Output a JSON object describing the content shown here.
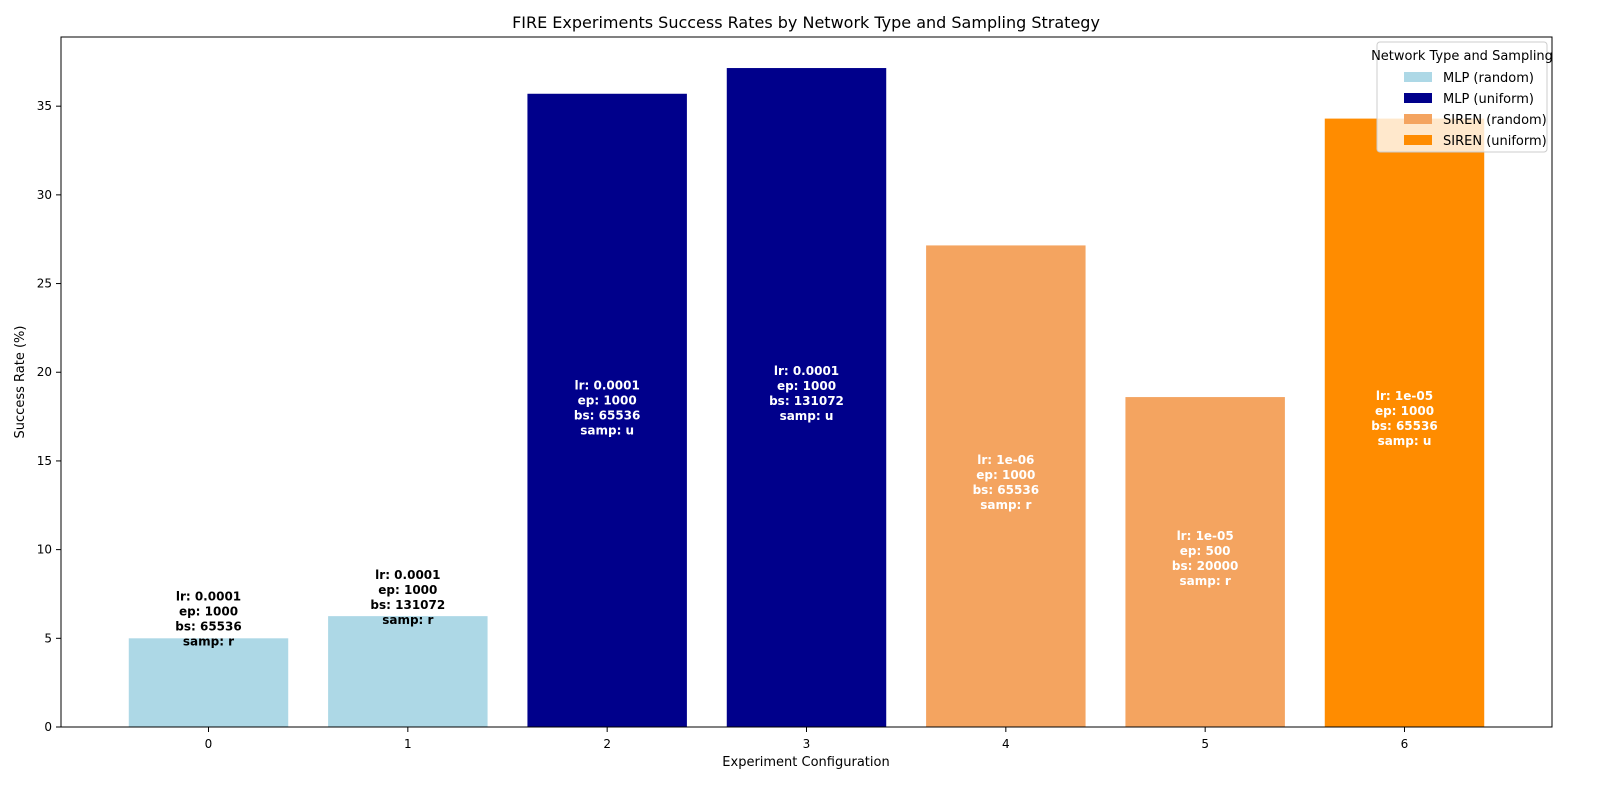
{
  "chart_data": {
    "type": "bar",
    "title": "FIRE Experiments Success Rates by Network Type and Sampling Strategy",
    "xlabel": "Experiment Configuration",
    "ylabel": "Success Rate (%)",
    "ylim": [
      0,
      38.9
    ],
    "xlim": [
      -0.74,
      6.74
    ],
    "yticks": [
      0,
      5,
      10,
      15,
      20,
      25,
      30,
      35
    ],
    "grid": false,
    "legend": {
      "title": "Network Type and Sampling",
      "placement": "top-right",
      "entries": [
        {
          "label": "MLP (random)",
          "color": "#add8e6"
        },
        {
          "label": "MLP (uniform)",
          "color": "#00008b"
        },
        {
          "label": "SIREN (random)",
          "color": "#f4a460"
        },
        {
          "label": "SIREN (uniform)",
          "color": "#ff8c00"
        }
      ]
    },
    "categories": [
      "0",
      "1",
      "2",
      "3",
      "4",
      "5",
      "6"
    ],
    "bars": [
      {
        "x": 0,
        "value": 5.0,
        "group": "MLP (random)",
        "color": "#add8e6",
        "label_color": "#000000",
        "label_pos": 4.6,
        "label_lines": [
          "lr: 0.0001",
          "ep: 1000",
          "bs: 65536",
          "samp: r"
        ]
      },
      {
        "x": 1,
        "value": 6.25,
        "group": "MLP (random)",
        "color": "#add8e6",
        "label_color": "#000000",
        "label_pos": 5.8,
        "label_lines": [
          "lr: 0.0001",
          "ep: 1000",
          "bs: 131072",
          "samp: r"
        ]
      },
      {
        "x": 2,
        "value": 35.7,
        "group": "MLP (uniform)",
        "color": "#00008b",
        "label_color": "#ffffff",
        "label_pos": 16.5,
        "label_lines": [
          "lr: 0.0001",
          "ep: 1000",
          "bs: 65536",
          "samp: u"
        ]
      },
      {
        "x": 3,
        "value": 37.15,
        "group": "MLP (uniform)",
        "color": "#00008b",
        "label_color": "#ffffff",
        "label_pos": 17.3,
        "label_lines": [
          "lr: 0.0001",
          "ep: 1000",
          "bs: 131072",
          "samp: u"
        ]
      },
      {
        "x": 4,
        "value": 27.15,
        "group": "SIREN (random)",
        "color": "#f4a460",
        "label_color": "#ffffff",
        "label_pos": 12.3,
        "label_lines": [
          "lr: 1e-06",
          "ep: 1000",
          "bs: 65536",
          "samp: r"
        ]
      },
      {
        "x": 5,
        "value": 18.6,
        "group": "SIREN (random)",
        "color": "#f4a460",
        "label_color": "#ffffff",
        "label_pos": 8.0,
        "label_lines": [
          "lr: 1e-05",
          "ep: 500",
          "bs: 20000",
          "samp: r"
        ]
      },
      {
        "x": 6,
        "value": 34.3,
        "group": "SIREN (uniform)",
        "color": "#ff8c00",
        "label_color": "#ffffff",
        "label_pos": 15.9,
        "label_lines": [
          "lr: 1e-05",
          "ep: 1000",
          "bs: 65536",
          "samp: u"
        ]
      }
    ]
  }
}
